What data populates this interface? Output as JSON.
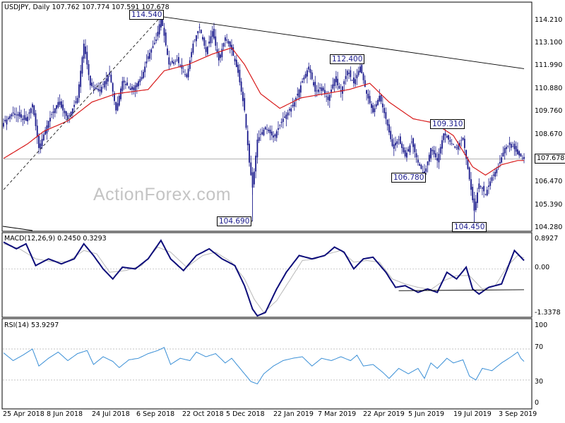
{
  "chart_data": [
    {
      "type": "candlestick",
      "symbol": "USDJPY",
      "timeframe": "Daily",
      "title": "USDJPY, Daily 107.762 107.774 107.591 107.678",
      "ohlc_last": {
        "open": "107.762",
        "high": "107.774",
        "low": "107.591",
        "close": "107.678"
      },
      "y_ticks": [
        "114.210",
        "113.100",
        "111.990",
        "110.880",
        "109.760",
        "108.670",
        "107.678",
        "106.470",
        "105.390",
        "104.280"
      ],
      "ylim": [
        104.28,
        114.9
      ],
      "current_price": "107.678",
      "x_ticks": [
        "25 Apr 2018",
        "8 Jun 2018",
        "24 Jul 2018",
        "6 Sep 2018",
        "22 Oct 2018",
        "5 Dec 2018",
        "22 Jan 2019",
        "7 Mar 2019",
        "22 Apr 2019",
        "5 Jun 2019",
        "19 Jul 2019",
        "3 Sep 2019"
      ],
      "annotations": [
        {
          "label": "114.540",
          "date_index": 98,
          "value": 114.54
        },
        {
          "label": "104.690",
          "date_index": 155,
          "value": 104.69
        },
        {
          "label": "112.400",
          "date_index": 222,
          "value": 112.4
        },
        {
          "label": "106.780",
          "date_index": 262,
          "value": 106.78
        },
        {
          "label": "109.310",
          "date_index": 276,
          "value": 109.31
        },
        {
          "label": "104.450",
          "date_index": 293,
          "value": 104.45
        }
      ],
      "path": [
        [
          0,
          109.4
        ],
        [
          6,
          109.9
        ],
        [
          14,
          109.5
        ],
        [
          18,
          110.3
        ],
        [
          22,
          108.2
        ],
        [
          28,
          109.5
        ],
        [
          34,
          110.4
        ],
        [
          40,
          109.6
        ],
        [
          46,
          110.6
        ],
        [
          50,
          113.2
        ],
        [
          54,
          111.2
        ],
        [
          60,
          111.0
        ],
        [
          66,
          111.8
        ],
        [
          70,
          110.0
        ],
        [
          74,
          111.4
        ],
        [
          80,
          111.0
        ],
        [
          86,
          111.6
        ],
        [
          90,
          112.6
        ],
        [
          95,
          113.4
        ],
        [
          98,
          114.5
        ],
        [
          103,
          112.2
        ],
        [
          108,
          112.4
        ],
        [
          114,
          111.6
        ],
        [
          118,
          113.2
        ],
        [
          122,
          114.0
        ],
        [
          126,
          112.8
        ],
        [
          130,
          113.8
        ],
        [
          134,
          112.4
        ],
        [
          138,
          113.5
        ],
        [
          142,
          112.9
        ],
        [
          146,
          111.8
        ],
        [
          150,
          110.0
        ],
        [
          153,
          107.5
        ],
        [
          155,
          106.3
        ],
        [
          158,
          108.6
        ],
        [
          163,
          109.2
        ],
        [
          168,
          108.7
        ],
        [
          174,
          109.6
        ],
        [
          180,
          110.2
        ],
        [
          186,
          111.4
        ],
        [
          190,
          112.1
        ],
        [
          194,
          110.9
        ],
        [
          198,
          111.1
        ],
        [
          202,
          110.5
        ],
        [
          206,
          111.5
        ],
        [
          210,
          110.9
        ],
        [
          214,
          111.9
        ],
        [
          218,
          111.3
        ],
        [
          222,
          112.1
        ],
        [
          226,
          110.8
        ],
        [
          230,
          109.9
        ],
        [
          234,
          110.7
        ],
        [
          238,
          109.6
        ],
        [
          242,
          108.3
        ],
        [
          246,
          108.6
        ],
        [
          250,
          107.8
        ],
        [
          254,
          108.5
        ],
        [
          258,
          107.5
        ],
        [
          262,
          106.9
        ],
        [
          266,
          108.2
        ],
        [
          270,
          107.6
        ],
        [
          274,
          108.9
        ],
        [
          278,
          108.5
        ],
        [
          282,
          108.2
        ],
        [
          286,
          108.7
        ],
        [
          290,
          106.7
        ],
        [
          293,
          105.2
        ],
        [
          296,
          106.5
        ],
        [
          300,
          106.0
        ],
        [
          304,
          106.8
        ],
        [
          308,
          107.3
        ],
        [
          312,
          108.2
        ],
        [
          316,
          108.4
        ],
        [
          320,
          107.9
        ],
        [
          324,
          107.678
        ]
      ],
      "ma_path": [
        [
          0,
          107.7
        ],
        [
          15,
          108.4
        ],
        [
          25,
          109.0
        ],
        [
          40,
          109.5
        ],
        [
          55,
          110.4
        ],
        [
          70,
          110.8
        ],
        [
          90,
          111.0
        ],
        [
          100,
          111.9
        ],
        [
          115,
          112.2
        ],
        [
          130,
          112.7
        ],
        [
          142,
          113.0
        ],
        [
          150,
          112.2
        ],
        [
          160,
          110.8
        ],
        [
          172,
          110.1
        ],
        [
          185,
          110.6
        ],
        [
          200,
          110.8
        ],
        [
          215,
          111.0
        ],
        [
          228,
          111.3
        ],
        [
          240,
          110.4
        ],
        [
          255,
          109.6
        ],
        [
          268,
          109.4
        ],
        [
          280,
          108.8
        ],
        [
          292,
          107.3
        ],
        [
          300,
          106.9
        ],
        [
          310,
          107.4
        ],
        [
          320,
          107.6
        ],
        [
          324,
          107.6
        ]
      ],
      "trendlines": [
        {
          "name": "falling-resistance",
          "from": [
            98,
            114.5
          ],
          "to": [
            324,
            112.0
          ]
        },
        {
          "name": "rising-support",
          "from": [
            0,
            106.2
          ],
          "to": [
            98,
            114.5
          ]
        },
        {
          "name": "horizontal-level",
          "from": [
            0,
            107.678
          ],
          "to": [
            324,
            107.678
          ]
        }
      ]
    },
    {
      "type": "line",
      "title": "MACD(12,26,9) 0.2450 0.3293",
      "indicator": "MACD",
      "params": "12,26,9",
      "values_label": "0.2450 0.3293",
      "y_ticks": [
        "0.8927",
        "0.00",
        "-1.3378"
      ],
      "ylim": [
        -1.45,
        0.9
      ],
      "macd_path": [
        [
          0,
          0.8
        ],
        [
          8,
          0.6
        ],
        [
          14,
          0.75
        ],
        [
          20,
          0.1
        ],
        [
          28,
          0.3
        ],
        [
          36,
          0.15
        ],
        [
          44,
          0.3
        ],
        [
          50,
          0.75
        ],
        [
          56,
          0.4
        ],
        [
          62,
          0.0
        ],
        [
          68,
          -0.3
        ],
        [
          74,
          0.05
        ],
        [
          82,
          0.0
        ],
        [
          90,
          0.3
        ],
        [
          98,
          0.85
        ],
        [
          104,
          0.3
        ],
        [
          112,
          -0.05
        ],
        [
          120,
          0.4
        ],
        [
          128,
          0.6
        ],
        [
          136,
          0.3
        ],
        [
          144,
          0.1
        ],
        [
          150,
          -0.5
        ],
        [
          155,
          -1.2
        ],
        [
          158,
          -1.4
        ],
        [
          163,
          -1.3
        ],
        [
          170,
          -0.6
        ],
        [
          176,
          -0.1
        ],
        [
          184,
          0.4
        ],
        [
          192,
          0.3
        ],
        [
          200,
          0.4
        ],
        [
          206,
          0.65
        ],
        [
          212,
          0.5
        ],
        [
          218,
          0.0
        ],
        [
          224,
          0.3
        ],
        [
          230,
          0.35
        ],
        [
          238,
          -0.1
        ],
        [
          244,
          -0.55
        ],
        [
          250,
          -0.5
        ],
        [
          258,
          -0.7
        ],
        [
          264,
          -0.6
        ],
        [
          270,
          -0.7
        ],
        [
          276,
          -0.1
        ],
        [
          282,
          -0.3
        ],
        [
          288,
          0.05
        ],
        [
          292,
          -0.6
        ],
        [
          296,
          -0.75
        ],
        [
          302,
          -0.55
        ],
        [
          310,
          -0.45
        ],
        [
          318,
          0.55
        ],
        [
          322,
          0.35
        ],
        [
          324,
          0.25
        ]
      ],
      "signal_path": [
        [
          0,
          0.75
        ],
        [
          10,
          0.6
        ],
        [
          20,
          0.3
        ],
        [
          30,
          0.22
        ],
        [
          40,
          0.22
        ],
        [
          50,
          0.55
        ],
        [
          58,
          0.45
        ],
        [
          66,
          -0.1
        ],
        [
          76,
          -0.05
        ],
        [
          86,
          0.1
        ],
        [
          96,
          0.65
        ],
        [
          104,
          0.5
        ],
        [
          114,
          0.05
        ],
        [
          124,
          0.4
        ],
        [
          132,
          0.5
        ],
        [
          142,
          0.2
        ],
        [
          150,
          -0.3
        ],
        [
          156,
          -0.9
        ],
        [
          162,
          -1.3
        ],
        [
          170,
          -0.95
        ],
        [
          178,
          -0.35
        ],
        [
          186,
          0.25
        ],
        [
          194,
          0.3
        ],
        [
          202,
          0.45
        ],
        [
          210,
          0.55
        ],
        [
          218,
          0.2
        ],
        [
          226,
          0.25
        ],
        [
          234,
          0.2
        ],
        [
          242,
          -0.3
        ],
        [
          250,
          -0.45
        ],
        [
          258,
          -0.55
        ],
        [
          266,
          -0.62
        ],
        [
          274,
          -0.35
        ],
        [
          282,
          -0.2
        ],
        [
          290,
          -0.2
        ],
        [
          298,
          -0.6
        ],
        [
          306,
          -0.5
        ],
        [
          314,
          0.1
        ],
        [
          320,
          0.4
        ],
        [
          324,
          0.33
        ]
      ],
      "level_line": {
        "from": [
          246,
          -0.65
        ],
        "to": [
          324,
          -0.62
        ]
      }
    },
    {
      "type": "line",
      "title": "RSI(14) 53.9297",
      "indicator": "RSI",
      "params": "14",
      "values_label": "53.9297",
      "y_ticks": [
        "100",
        "70",
        "30",
        "0"
      ],
      "ylim": [
        0,
        100
      ],
      "levels": [
        70,
        30
      ],
      "rsi_path": [
        [
          0,
          65
        ],
        [
          6,
          55
        ],
        [
          12,
          62
        ],
        [
          18,
          70
        ],
        [
          22,
          48
        ],
        [
          28,
          58
        ],
        [
          34,
          66
        ],
        [
          40,
          55
        ],
        [
          46,
          64
        ],
        [
          52,
          68
        ],
        [
          56,
          50
        ],
        [
          62,
          60
        ],
        [
          68,
          54
        ],
        [
          72,
          46
        ],
        [
          78,
          56
        ],
        [
          84,
          58
        ],
        [
          90,
          64
        ],
        [
          96,
          68
        ],
        [
          100,
          72
        ],
        [
          104,
          50
        ],
        [
          110,
          58
        ],
        [
          116,
          55
        ],
        [
          120,
          66
        ],
        [
          126,
          60
        ],
        [
          132,
          64
        ],
        [
          138,
          52
        ],
        [
          142,
          58
        ],
        [
          146,
          48
        ],
        [
          150,
          38
        ],
        [
          154,
          28
        ],
        [
          158,
          25
        ],
        [
          162,
          38
        ],
        [
          168,
          48
        ],
        [
          174,
          55
        ],
        [
          180,
          58
        ],
        [
          186,
          60
        ],
        [
          192,
          48
        ],
        [
          198,
          58
        ],
        [
          204,
          55
        ],
        [
          210,
          60
        ],
        [
          216,
          55
        ],
        [
          220,
          62
        ],
        [
          224,
          48
        ],
        [
          230,
          50
        ],
        [
          236,
          40
        ],
        [
          240,
          32
        ],
        [
          246,
          45
        ],
        [
          252,
          38
        ],
        [
          258,
          45
        ],
        [
          262,
          32
        ],
        [
          266,
          52
        ],
        [
          270,
          45
        ],
        [
          276,
          58
        ],
        [
          280,
          52
        ],
        [
          286,
          56
        ],
        [
          290,
          35
        ],
        [
          294,
          30
        ],
        [
          298,
          45
        ],
        [
          304,
          42
        ],
        [
          310,
          52
        ],
        [
          316,
          60
        ],
        [
          320,
          66
        ],
        [
          322,
          58
        ],
        [
          324,
          54
        ]
      ]
    }
  ],
  "watermark": "ActionForex.com",
  "colors": {
    "candle": "#1a1a8c",
    "ma": "#d81b1b",
    "macd": "#0d0d7a",
    "signal": "#b8b8b8",
    "rsi": "#3a8fd6",
    "trend": "#000000",
    "label_text": "#1a1a8c"
  }
}
